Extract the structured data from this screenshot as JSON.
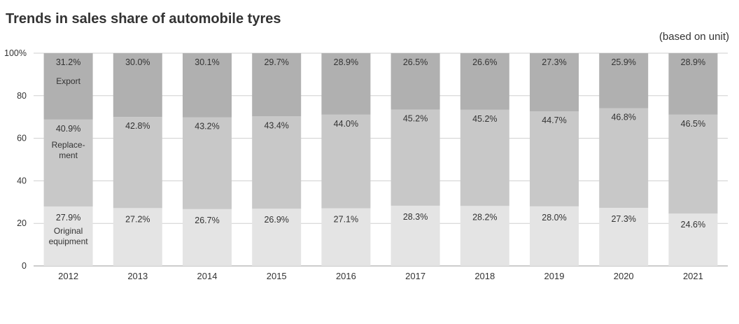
{
  "title": "Trends in sales share of automobile tyres",
  "unit_note": "(based on unit)",
  "chart_data": {
    "type": "bar",
    "stacked": true,
    "categories": [
      "2012",
      "2013",
      "2014",
      "2015",
      "2016",
      "2017",
      "2018",
      "2019",
      "2020",
      "2021"
    ],
    "series": [
      {
        "name": "Original equipment",
        "label_lines": [
          "Original",
          "equipment"
        ],
        "color": "#e4e4e4",
        "values": [
          27.9,
          27.2,
          26.7,
          26.9,
          27.1,
          28.3,
          28.2,
          28.0,
          27.3,
          24.6
        ],
        "labels": [
          "27.9%",
          "27.2%",
          "26.7%",
          "26.9%",
          "27.1%",
          "28.3%",
          "28.2%",
          "28.0%",
          "27.3%",
          "24.6%"
        ]
      },
      {
        "name": "Replacement",
        "label_lines": [
          "Replace-",
          "ment"
        ],
        "color": "#c8c8c8",
        "values": [
          40.9,
          42.8,
          43.2,
          43.4,
          44.0,
          45.2,
          45.2,
          44.7,
          46.8,
          46.5
        ],
        "labels": [
          "40.9%",
          "42.8%",
          "43.2%",
          "43.4%",
          "44.0%",
          "45.2%",
          "45.2%",
          "44.7%",
          "46.8%",
          "46.5%"
        ]
      },
      {
        "name": "Export",
        "label_lines": [
          "Export"
        ],
        "color": "#b0b0b0",
        "values": [
          31.2,
          30.0,
          30.1,
          29.7,
          28.9,
          26.5,
          26.6,
          27.3,
          25.9,
          28.9
        ],
        "labels": [
          "31.2%",
          "30.0%",
          "30.1%",
          "29.7%",
          "28.9%",
          "26.5%",
          "26.6%",
          "27.3%",
          "25.9%",
          "28.9%"
        ]
      }
    ],
    "ylim": [
      0,
      100
    ],
    "yticks": [
      0,
      20,
      40,
      60,
      80,
      100
    ],
    "ytick_labels": [
      "0",
      "20",
      "40",
      "60",
      "80",
      "100%"
    ],
    "grid": true,
    "xlabel": "",
    "ylabel": ""
  }
}
